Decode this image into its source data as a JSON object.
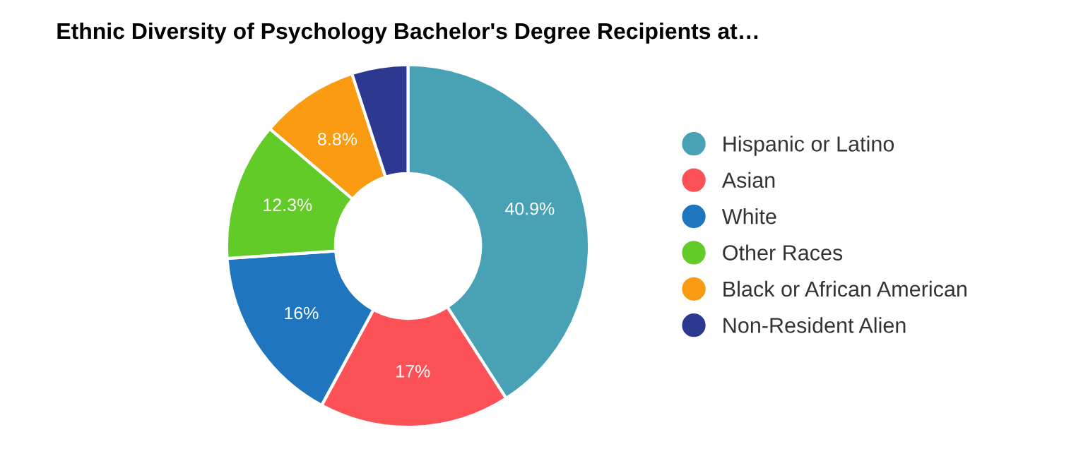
{
  "chart_data": {
    "type": "donut",
    "title": "Ethnic Diversity of Psychology Bachelor's Degree Recipients at…",
    "categories": [
      "Hispanic or Latino",
      "Asian",
      "White",
      "Other Races",
      "Black or African American",
      "Non-Resident Alien"
    ],
    "values": [
      40.9,
      17,
      16,
      12.3,
      8.8,
      5.0
    ],
    "value_labels": [
      "40.9%",
      "17%",
      "16%",
      "12.3%",
      "8.8%",
      null
    ],
    "colors": [
      "#48a1b5",
      "#fc5257",
      "#1f76be",
      "#62cb28",
      "#fb9b12",
      "#2d3990"
    ],
    "legend": "right"
  }
}
